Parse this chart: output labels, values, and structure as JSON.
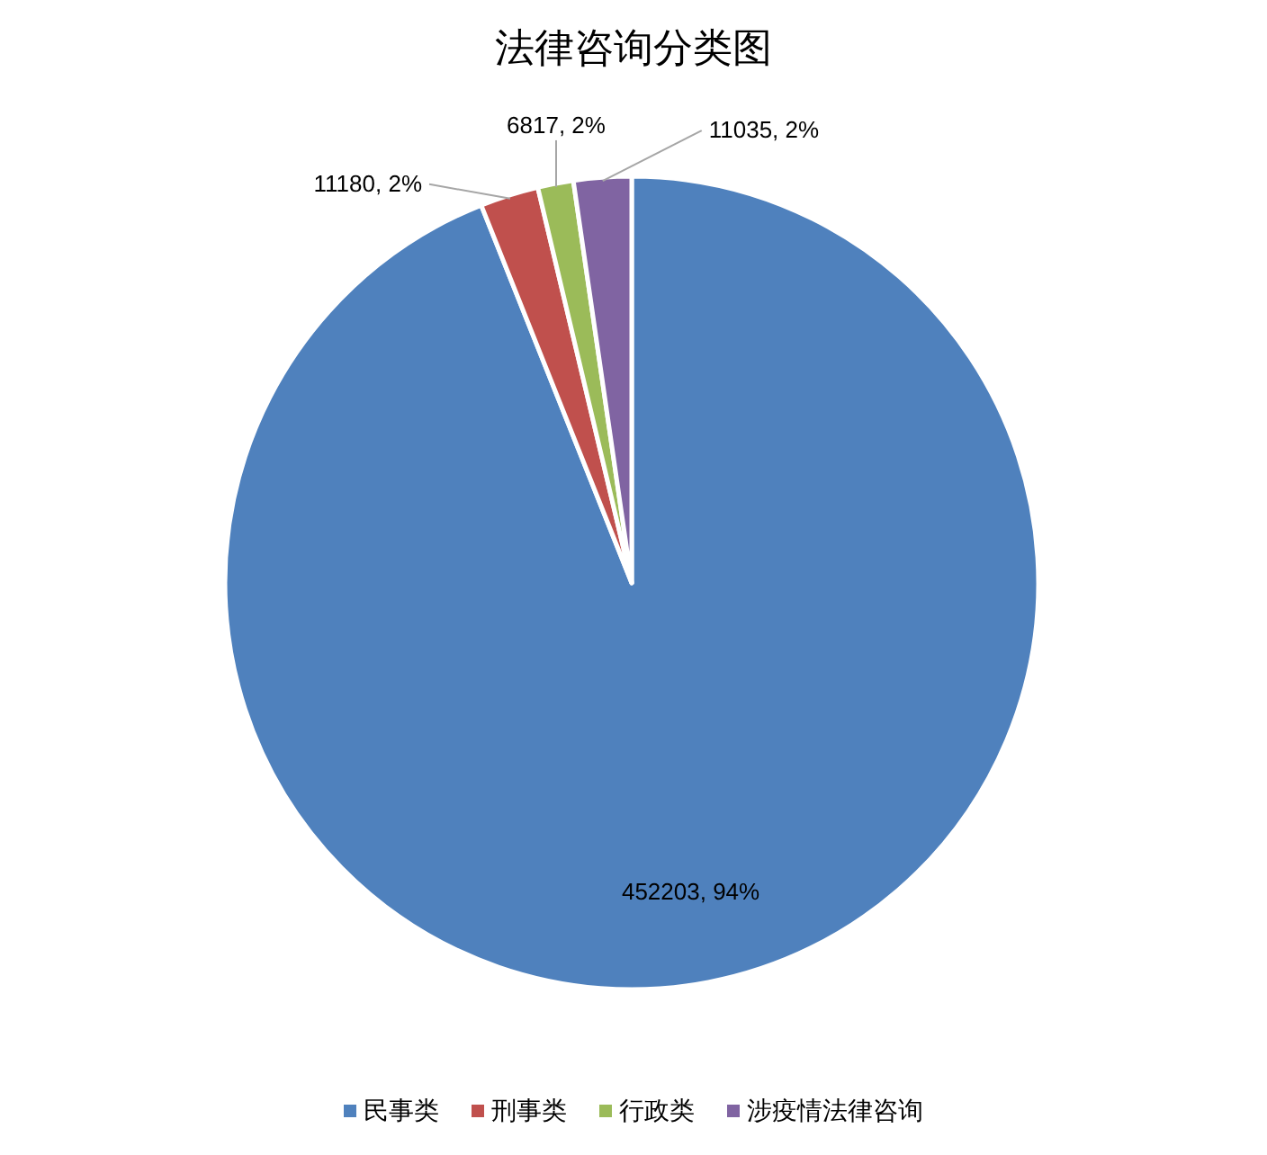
{
  "chart_data": {
    "type": "pie",
    "title": "法律咨询分类图",
    "categories": [
      "民事类",
      "刑事类",
      "行政类",
      "涉疫情法律咨询"
    ],
    "values": [
      452203,
      11180,
      6817,
      11035
    ],
    "colors": [
      "#4f81bd",
      "#c0504d",
      "#9bbb59",
      "#8064a2"
    ],
    "value_labels": [
      "452203, 94%",
      "11180, 2%",
      "6817, 2%",
      "11035, 2%"
    ],
    "legend": "bottom"
  }
}
